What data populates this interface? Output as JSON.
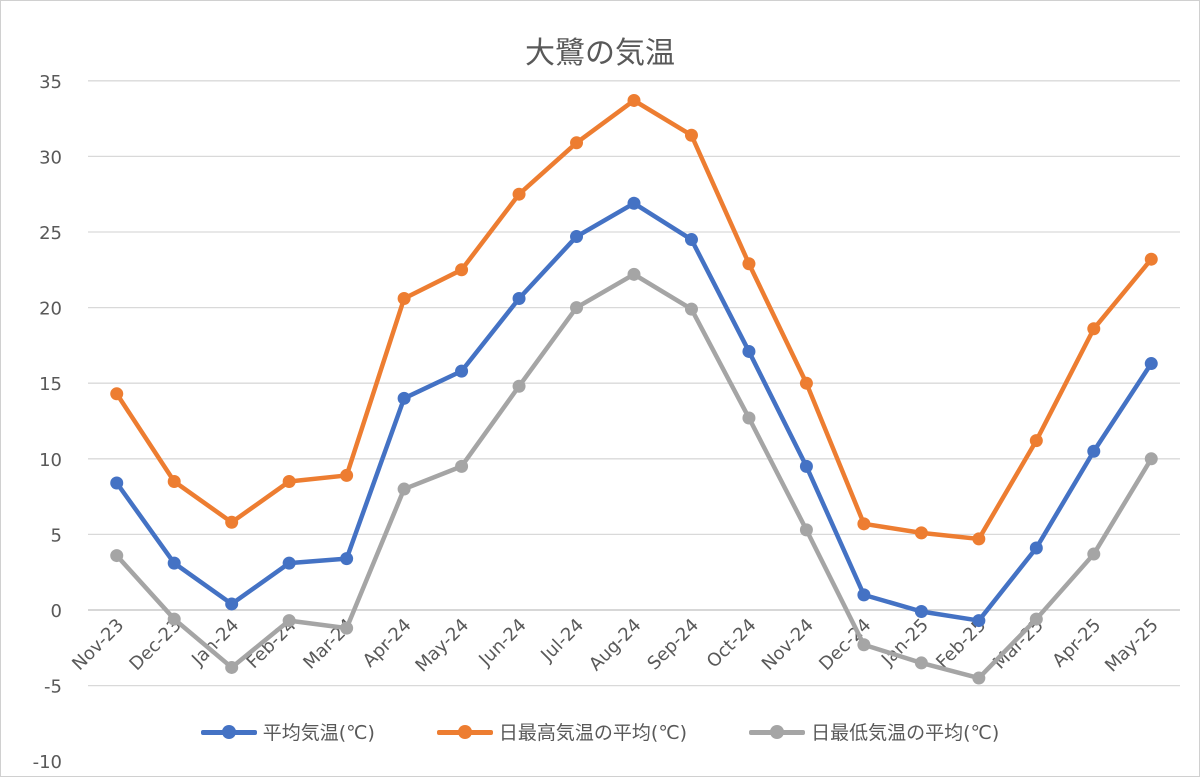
{
  "chart_data": {
    "type": "line",
    "title": "大鷺の気温",
    "categories": [
      "Nov-23",
      "Dec-23",
      "Jan-24",
      "Feb-24",
      "Mar-24",
      "Apr-24",
      "May-24",
      "Jun-24",
      "Jul-24",
      "Aug-24",
      "Sep-24",
      "Oct-24",
      "Nov-24",
      "Dec-24",
      "Jan-25",
      "Feb-25",
      "Mar-25",
      "Apr-25",
      "May-25"
    ],
    "ylim": [
      -10,
      35
    ],
    "yticks": [
      35,
      30,
      25,
      20,
      15,
      10,
      5,
      0,
      -5,
      -10
    ],
    "grid": true,
    "legend_position": "bottom",
    "series": [
      {
        "name": "平均気温(℃)",
        "color": "#4472C4",
        "values": [
          8.4,
          3.1,
          0.4,
          3.1,
          3.4,
          14.0,
          15.8,
          20.6,
          24.7,
          26.9,
          24.5,
          17.1,
          9.5,
          1.0,
          -0.1,
          -0.7,
          4.1,
          10.5,
          16.3
        ]
      },
      {
        "name": "日最高気温の平均(℃)",
        "color": "#ED7D31",
        "values": [
          14.3,
          8.5,
          5.8,
          8.5,
          8.9,
          20.6,
          22.5,
          27.5,
          30.9,
          33.7,
          31.4,
          22.9,
          15.0,
          5.7,
          5.1,
          4.7,
          11.2,
          18.6,
          23.2
        ]
      },
      {
        "name": "日最低気温の平均(℃)",
        "color": "#A5A5A5",
        "values": [
          3.6,
          -0.6,
          -3.8,
          -0.7,
          -1.2,
          8.0,
          9.5,
          14.8,
          20.0,
          22.2,
          19.9,
          12.7,
          5.3,
          -2.3,
          -3.5,
          -4.5,
          -0.6,
          3.7,
          10.0
        ]
      }
    ]
  }
}
